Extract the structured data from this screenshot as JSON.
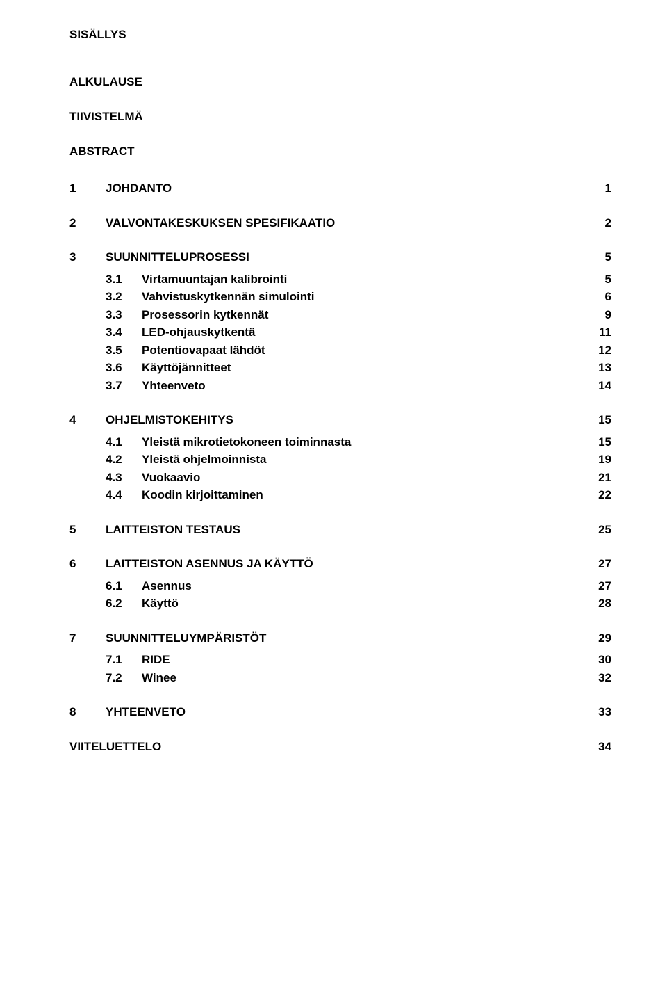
{
  "title": "SISÄLLYS",
  "front": [
    "ALKULAUSE",
    "TIIVISTELMÄ",
    "ABSTRACT"
  ],
  "sections": [
    {
      "num": "1",
      "title": "JOHDANTO",
      "page": "1",
      "subs": []
    },
    {
      "num": "2",
      "title": "VALVONTAKESKUKSEN SPESIFIKAATIO",
      "page": "2",
      "subs": []
    },
    {
      "num": "3",
      "title": "SUUNNITTELUPROSESSI",
      "page": "5",
      "subs": [
        {
          "num": "3.1",
          "title": "Virtamuuntajan kalibrointi",
          "page": "5"
        },
        {
          "num": "3.2",
          "title": "Vahvistuskytkennän simulointi",
          "page": "6"
        },
        {
          "num": "3.3",
          "title": "Prosessorin kytkennät",
          "page": "9"
        },
        {
          "num": "3.4",
          "title": "LED-ohjauskytkentä",
          "page": "11"
        },
        {
          "num": "3.5",
          "title": "Potentiovapaat lähdöt",
          "page": "12"
        },
        {
          "num": "3.6",
          "title": "Käyttöjännitteet",
          "page": "13"
        },
        {
          "num": "3.7",
          "title": "Yhteenveto",
          "page": "14"
        }
      ]
    },
    {
      "num": "4",
      "title": "OHJELMISTOKEHITYS",
      "page": "15",
      "subs": [
        {
          "num": "4.1",
          "title": "Yleistä mikrotietokoneen toiminnasta",
          "page": "15"
        },
        {
          "num": "4.2",
          "title": "Yleistä ohjelmoinnista",
          "page": "19"
        },
        {
          "num": "4.3",
          "title": "Vuokaavio",
          "page": "21"
        },
        {
          "num": "4.4",
          "title": "Koodin kirjoittaminen",
          "page": "22"
        }
      ]
    },
    {
      "num": "5",
      "title": "LAITTEISTON TESTAUS",
      "page": "25",
      "subs": []
    },
    {
      "num": "6",
      "title": "LAITTEISTON ASENNUS JA KÄYTTÖ",
      "page": "27",
      "subs": [
        {
          "num": "6.1",
          "title": "Asennus",
          "page": "27"
        },
        {
          "num": "6.2",
          "title": "Käyttö",
          "page": "28"
        }
      ]
    },
    {
      "num": "7",
      "title": "SUUNNITTELUYMPÄRISTÖT",
      "page": "29",
      "subs": [
        {
          "num": "7.1",
          "title": "RIDE",
          "page": "30"
        },
        {
          "num": "7.2",
          "title": "Winee",
          "page": "32"
        }
      ]
    },
    {
      "num": "8",
      "title": "YHTEENVETO",
      "page": "33",
      "subs": []
    }
  ],
  "back": {
    "title": "VIITELUETTELO",
    "page": "34"
  }
}
